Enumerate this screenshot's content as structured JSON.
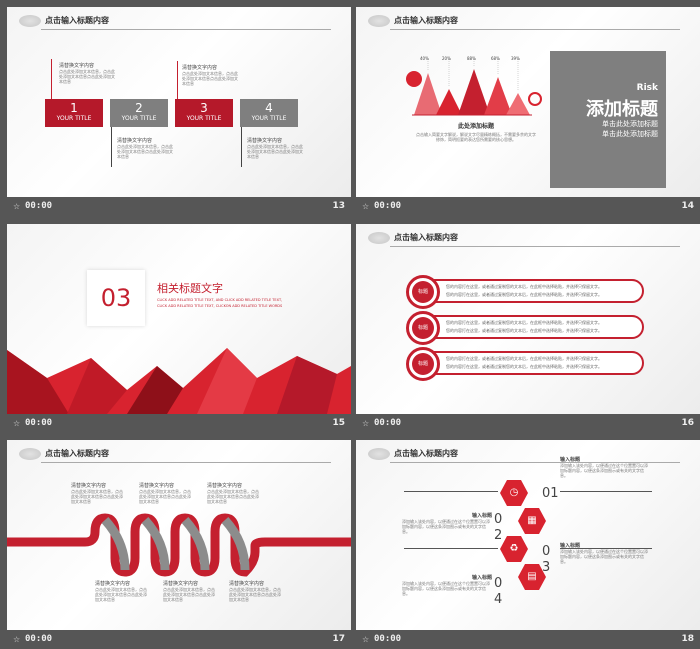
{
  "footer": {
    "star": "☆",
    "time": "00:00"
  },
  "colors": {
    "accent": "#c4202f",
    "gray": "#7f7f7f",
    "background": "#565656"
  },
  "slides": {
    "s13": {
      "number": "13",
      "header": "点击输入标题内容",
      "items": [
        {
          "n": "1",
          "title": "YOUR TITLE",
          "heading": "清替换文字内容",
          "text": "点击此处添加文本信息，点击此处添加文本信息点击此处添加文本信息"
        },
        {
          "n": "2",
          "title": "YOUR TITLE",
          "heading": "清替换文字内容",
          "text": "点击此处添加文本信息，点击此处添加文本信息点击此处添加文本信息"
        },
        {
          "n": "3",
          "title": "YOUR TITLE",
          "heading": "清替换文字内容",
          "text": "点击此处添加文本信息，点击此处添加文本信息点击此处添加文本信息"
        },
        {
          "n": "4",
          "title": "YOUR TITLE",
          "heading": "清替换文字内容",
          "text": "点击此处添加文本信息，点击此处添加文本信息点击此处添加文本信息"
        }
      ]
    },
    "s14": {
      "number": "14",
      "percents": [
        "40%",
        "20%",
        "88%",
        "68%",
        "39%"
      ],
      "caption_title": "此处添加标题",
      "caption_text": "点击输入简要文字解说，解说文字尽量精练概括，不需要多余的文字修饰，简明扼要的表达您所需要的核心思想。",
      "risk": "Risk",
      "big_title": "添加标题",
      "sub1": "单击此处添加标题",
      "sub2": "单击此处添加标题"
    },
    "s15": {
      "number": "15",
      "code": "03",
      "title": "相关标题文字",
      "subtitle": "CLICK ADD RELATED TITLE TEXT, AND CLICK ADD RELATED TITLE TEXT, CLICK ADD RELATED TITLE TEXT, CLICKON ADD RELATED TITLE WORDS"
    },
    "s16": {
      "number": "16",
      "header": "点击输入标题内容",
      "rows": [
        {
          "label": "标题",
          "text1": "您的内容打在这里，或者通过复制您的文本后，在此框中选择粘贴，并选择只保留文字。",
          "text2": "您的内容打在这里，或者通过复制您的文本后，在此框中选择粘贴，并选择只保留文字。"
        },
        {
          "label": "标题",
          "text1": "您的内容打在这里，或者通过复制您的文本后，在此框中选择粘贴，并选择只保留文字。",
          "text2": "您的内容打在这里，或者通过复制您的文本后，在此框中选择粘贴，并选择只保留文字。"
        },
        {
          "label": "标题",
          "text1": "您的内容打在这里，或者通过复制您的文本后，在此框中选择粘贴，并选择只保留文字。",
          "text2": "您的内容打在这里，或者通过复制您的文本后，在此框中选择粘贴，并选择只保留文字。"
        }
      ]
    },
    "s17": {
      "number": "17",
      "header": "点击输入标题内容",
      "heading": "清替换文字内容",
      "text": "点击此处添加文本信息，点击此处添加文本信息点击此处添加文本信息"
    },
    "s18": {
      "number": "18",
      "header": "点击输入标题内容",
      "items": [
        {
          "num": "01",
          "title": "输入标题",
          "text": "添加输入该处内容，以便通过在这个位置置可以添加标题内容，以便这条添加图示或有关的文字信息。"
        },
        {
          "num": "02",
          "title": "输入标题",
          "text": "添加输入该处内容，以便通过在这个位置置可以添加标题内容，以便这条添加图示或有关的文字信息。"
        },
        {
          "num": "03",
          "title": "输入标题",
          "text": "添加输入该处内容，以便通过在这个位置置可以添加标题内容，以便这条添加图示或有关的文字信息。"
        },
        {
          "num": "04",
          "title": "输入标题",
          "text": "添加输入该处内容，以便通过在这个位置置可以添加标题内容，以便这条添加图示或有关的文字信息。"
        }
      ]
    }
  }
}
